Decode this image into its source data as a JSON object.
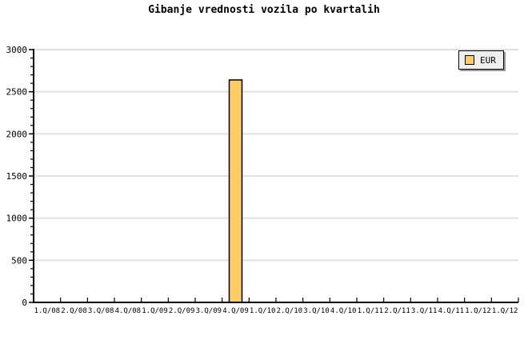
{
  "chart_data": {
    "type": "bar",
    "title": "Gibanje vrednosti vozila po kvartalih",
    "categories": [
      "1.Q/08",
      "2.Q/08",
      "3.Q/08",
      "4.Q/08",
      "1.Q/09",
      "2.Q/09",
      "3.Q/09",
      "4.Q/09",
      "1.Q/10",
      "2.Q/10",
      "3.Q/10",
      "4.Q/10",
      "1.Q/11",
      "2.Q/11",
      "3.Q/11",
      "4.Q/11",
      "1.Q/12",
      "1.Q/12"
    ],
    "series": [
      {
        "name": "EUR",
        "values": [
          null,
          null,
          null,
          null,
          null,
          null,
          null,
          2640,
          null,
          null,
          null,
          null,
          null,
          null,
          null,
          null,
          null,
          null
        ]
      }
    ],
    "xlabel": "",
    "ylabel": "",
    "ylim": [
      0,
      3000
    ],
    "y_major_ticks": [
      0,
      500,
      1000,
      1500,
      2000,
      2500,
      3000
    ],
    "y_minor_step": 100,
    "grid": "horizontal-major",
    "legend_position": "top-right",
    "colors": {
      "bar_fill": "#FFCC66",
      "bar_border": "#000000",
      "grid": "#E0E0E0",
      "axis": "#000000",
      "background": "#FFFFFF",
      "legend_bg": "#EFEFEF",
      "legend_shadow": "#999999",
      "text": "#000000"
    }
  }
}
